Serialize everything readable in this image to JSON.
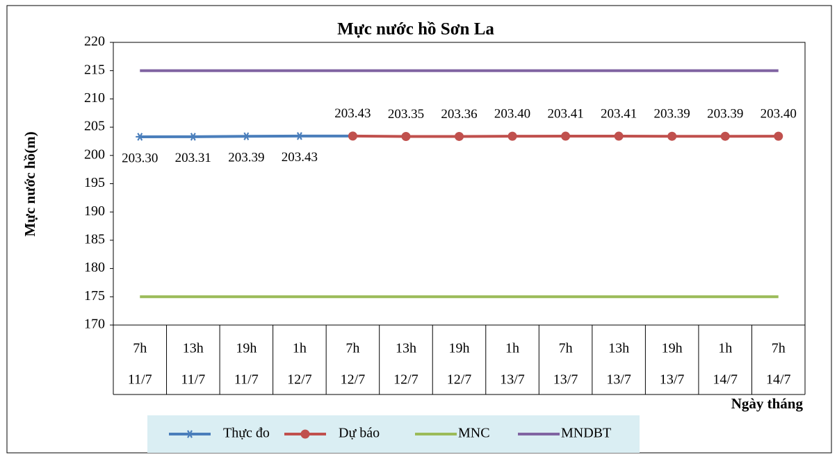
{
  "chart_data": {
    "type": "line",
    "title": "Mực nước hồ Sơn La",
    "y_label": "Mực nước hồ(m)",
    "x_label": "Ngày tháng",
    "categories": [
      [
        "7h",
        "11/7"
      ],
      [
        "13h",
        "11/7"
      ],
      [
        "19h",
        "11/7"
      ],
      [
        "1h",
        "12/7"
      ],
      [
        "7h",
        "12/7"
      ],
      [
        "13h",
        "12/7"
      ],
      [
        "19h",
        "12/7"
      ],
      [
        "1h",
        "13/7"
      ],
      [
        "7h",
        "13/7"
      ],
      [
        "13h",
        "13/7"
      ],
      [
        "19h",
        "13/7"
      ],
      [
        "1h",
        "14/7"
      ],
      [
        "7h",
        "14/7"
      ]
    ],
    "series": [
      {
        "name": "Thực đo",
        "color": "#4a7ebb",
        "marker": "star",
        "label_position": "below",
        "values": [
          203.3,
          203.31,
          203.39,
          203.43,
          203.43,
          null,
          null,
          null,
          null,
          null,
          null,
          null,
          null
        ],
        "value_labels": [
          "203.30",
          "203.31",
          "203.39",
          "203.43",
          null,
          null,
          null,
          null,
          null,
          null,
          null,
          null,
          null
        ]
      },
      {
        "name": "Dự báo",
        "color": "#c0504d",
        "marker": "circle",
        "label_position": "above",
        "values": [
          null,
          null,
          null,
          null,
          203.43,
          203.35,
          203.36,
          203.4,
          203.41,
          203.41,
          203.39,
          203.39,
          203.4
        ],
        "value_labels": [
          null,
          null,
          null,
          null,
          "203.43",
          "203.35",
          "203.36",
          "203.40",
          "203.41",
          "203.41",
          "203.39",
          "203.39",
          "203.40"
        ]
      },
      {
        "name": "MNC",
        "color": "#9bbb59",
        "marker": "none",
        "values": [
          175,
          175,
          175,
          175,
          175,
          175,
          175,
          175,
          175,
          175,
          175,
          175,
          175
        ]
      },
      {
        "name": "MNDBT",
        "color": "#8064a2",
        "marker": "none",
        "values": [
          215,
          215,
          215,
          215,
          215,
          215,
          215,
          215,
          215,
          215,
          215,
          215,
          215
        ]
      }
    ],
    "ylim": [
      170,
      220
    ],
    "yticks": [
      170,
      175,
      180,
      185,
      190,
      195,
      200,
      205,
      210,
      215,
      220
    ],
    "legend": "bottom"
  }
}
